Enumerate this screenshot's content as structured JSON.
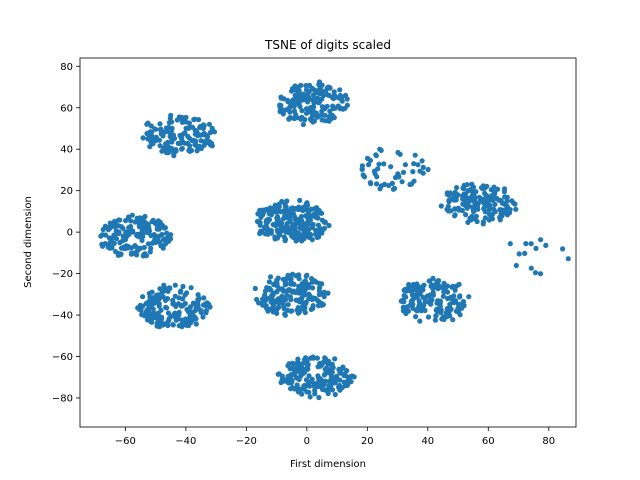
{
  "chart_data": {
    "type": "scatter",
    "title": "TSNE of digits scaled",
    "xlabel": "First dimension",
    "ylabel": "Second dimension",
    "xlim": [
      -75,
      89
    ],
    "ylim": [
      -94,
      84
    ],
    "xticks": [
      -60,
      -40,
      -20,
      0,
      20,
      40,
      60,
      80
    ],
    "yticks": [
      -80,
      -60,
      -40,
      -20,
      0,
      20,
      40,
      60,
      80
    ],
    "grid": false,
    "color": "#1f77b4",
    "clusters": [
      {
        "cx": -42,
        "cy": 47,
        "n": 140,
        "seed": 11
      },
      {
        "cx": 2,
        "cy": 62,
        "n": 170,
        "seed": 12
      },
      {
        "cx": 28,
        "cy": 30,
        "n": 50,
        "seed": 13
      },
      {
        "cx": 57,
        "cy": 14,
        "n": 160,
        "seed": 14
      },
      {
        "cx": -57,
        "cy": -2,
        "n": 170,
        "seed": 15
      },
      {
        "cx": -5,
        "cy": 5,
        "n": 220,
        "seed": 16
      },
      {
        "cx": 75,
        "cy": -12,
        "n": 14,
        "seed": 17
      },
      {
        "cx": -44,
        "cy": -36,
        "n": 170,
        "seed": 18
      },
      {
        "cx": -5,
        "cy": -30,
        "n": 170,
        "seed": 19
      },
      {
        "cx": 42,
        "cy": -33,
        "n": 160,
        "seed": 20
      },
      {
        "cx": 3,
        "cy": -70,
        "n": 180,
        "seed": 21
      }
    ]
  }
}
